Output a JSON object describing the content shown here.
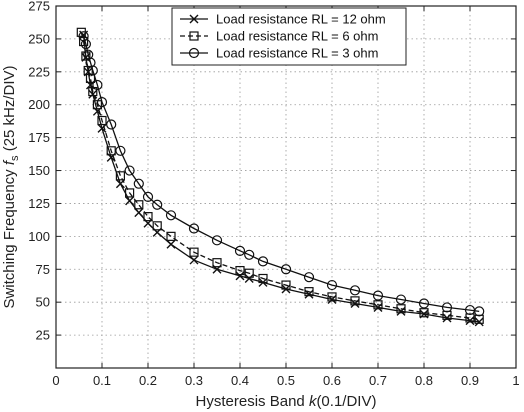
{
  "chart_data": {
    "type": "line",
    "title": "",
    "xlabel_parts": [
      "Hysteresis Band ",
      "k",
      "(0.1/DIV)"
    ],
    "ylabel_parts": [
      "Switching Frequency ",
      "f",
      "s",
      " (25 kHz/DIV)"
    ],
    "xlim": [
      0,
      1
    ],
    "ylim": [
      0,
      275
    ],
    "xticks": [
      "0",
      "0.1",
      "0.2",
      "0.3",
      "0.4",
      "0.5",
      "0.6",
      "0.7",
      "0.8",
      "0.9",
      "1"
    ],
    "yticks": [
      "25",
      "50",
      "75",
      "100",
      "125",
      "150",
      "175",
      "200",
      "225",
      "250",
      "275"
    ],
    "xtick_values": [
      0,
      0.1,
      0.2,
      0.3,
      0.4,
      0.5,
      0.6,
      0.7,
      0.8,
      0.9,
      1
    ],
    "ytick_values": [
      25,
      50,
      75,
      100,
      125,
      150,
      175,
      200,
      225,
      250,
      275
    ],
    "grid": true,
    "legend_position": "top-right",
    "series": [
      {
        "name": "Load resistance RL = 12 ohm",
        "marker": "x",
        "line_style": "solid",
        "x": [
          0.06,
          0.065,
          0.07,
          0.075,
          0.08,
          0.09,
          0.1,
          0.12,
          0.14,
          0.16,
          0.18,
          0.2,
          0.22,
          0.25,
          0.3,
          0.35,
          0.4,
          0.42,
          0.45,
          0.5,
          0.55,
          0.6,
          0.65,
          0.7,
          0.75,
          0.8,
          0.85,
          0.9,
          0.92
        ],
        "y": [
          253,
          236,
          225,
          215,
          208,
          195,
          182,
          160,
          140,
          127,
          118,
          110,
          103,
          94,
          82,
          75,
          70,
          68,
          65,
          60,
          56,
          52,
          49,
          46,
          43,
          41,
          38,
          36,
          35
        ]
      },
      {
        "name": "Load resistance RL = 6 ohm",
        "marker": "square",
        "line_style": "dashed",
        "x": [
          0.055,
          0.06,
          0.065,
          0.07,
          0.075,
          0.08,
          0.09,
          0.1,
          0.12,
          0.14,
          0.16,
          0.18,
          0.2,
          0.22,
          0.25,
          0.3,
          0.35,
          0.4,
          0.42,
          0.45,
          0.5,
          0.55,
          0.6,
          0.65,
          0.7,
          0.75,
          0.8,
          0.85,
          0.9,
          0.92
        ],
        "y": [
          255,
          248,
          237,
          226,
          220,
          210,
          200,
          188,
          165,
          146,
          133,
          124,
          115,
          108,
          100,
          88,
          80,
          74,
          72,
          68,
          63,
          58,
          54,
          51,
          48,
          45,
          42,
          40,
          38,
          37
        ]
      },
      {
        "name": "Load resistance RL = 3 ohm",
        "marker": "circle",
        "line_style": "solid",
        "x": [
          0.06,
          0.065,
          0.07,
          0.075,
          0.08,
          0.09,
          0.1,
          0.12,
          0.14,
          0.16,
          0.18,
          0.2,
          0.22,
          0.25,
          0.3,
          0.35,
          0.4,
          0.42,
          0.45,
          0.5,
          0.55,
          0.6,
          0.65,
          0.7,
          0.75,
          0.8,
          0.85,
          0.9,
          0.92
        ],
        "y": [
          252,
          246,
          238,
          232,
          226,
          215,
          202,
          185,
          165,
          150,
          140,
          130,
          124,
          116,
          106,
          97,
          89,
          86,
          81,
          75,
          69,
          63,
          59,
          55,
          52,
          49,
          46,
          44,
          43
        ]
      }
    ]
  }
}
